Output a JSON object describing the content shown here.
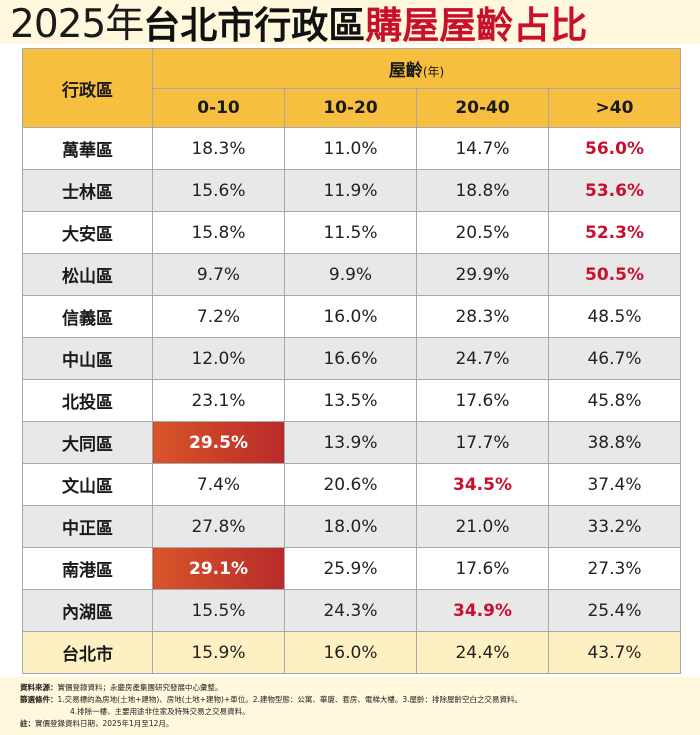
{
  "title": {
    "year": "2025年",
    "main": "台北市行政區",
    "highlight": "購屋屋齡占比"
  },
  "table": {
    "district_header": "行政區",
    "age_header": "屋齡",
    "age_unit": "(年)",
    "age_buckets": [
      "0-10",
      "10-20",
      "20-40",
      ">40"
    ],
    "rows": [
      {
        "district": "萬華區",
        "values": [
          "18.3%",
          "11.0%",
          "14.7%",
          "56.0%"
        ],
        "highlight": [
          3
        ]
      },
      {
        "district": "士林區",
        "values": [
          "15.6%",
          "11.9%",
          "18.8%",
          "53.6%"
        ],
        "highlight": [
          3
        ]
      },
      {
        "district": "大安區",
        "values": [
          "15.8%",
          "11.5%",
          "20.5%",
          "52.3%"
        ],
        "highlight": [
          3
        ]
      },
      {
        "district": "松山區",
        "values": [
          "9.7%",
          "9.9%",
          "29.9%",
          "50.5%"
        ],
        "highlight": [
          3
        ]
      },
      {
        "district": "信義區",
        "values": [
          "7.2%",
          "16.0%",
          "28.3%",
          "48.5%"
        ],
        "highlight": []
      },
      {
        "district": "中山區",
        "values": [
          "12.0%",
          "16.6%",
          "24.7%",
          "46.7%"
        ],
        "highlight": []
      },
      {
        "district": "北投區",
        "values": [
          "23.1%",
          "13.5%",
          "17.6%",
          "45.8%"
        ],
        "highlight": []
      },
      {
        "district": "大同區",
        "values": [
          "29.5%",
          "13.9%",
          "17.7%",
          "38.8%"
        ],
        "highlight": [
          0
        ]
      },
      {
        "district": "文山區",
        "values": [
          "7.4%",
          "20.6%",
          "34.5%",
          "37.4%"
        ],
        "highlight": [
          2
        ]
      },
      {
        "district": "中正區",
        "values": [
          "27.8%",
          "18.0%",
          "21.0%",
          "33.2%"
        ],
        "highlight": []
      },
      {
        "district": "南港區",
        "values": [
          "29.1%",
          "25.9%",
          "17.6%",
          "27.3%"
        ],
        "highlight": [
          0
        ]
      },
      {
        "district": "內湖區",
        "values": [
          "15.5%",
          "24.3%",
          "34.9%",
          "25.4%"
        ],
        "highlight": [
          2
        ]
      }
    ],
    "total": {
      "district": "台北市",
      "values": [
        "15.9%",
        "16.0%",
        "24.4%",
        "43.7%"
      ]
    }
  },
  "notes": {
    "source_label": "資料來源：",
    "source_text": "實價登錄資料；永慶房產集團研究發展中心彙整。",
    "filter_label": "篩選條件：",
    "filter_text": "1.交易標的為房地(土地+建物)、房地(土地+建物)+車位。2.建物型態：公寓、華廈、套房、電梯大樓。3.屋齡：排除屋齡空白之交易資料。",
    "filter_text_2": "4.排除一樓、主要用途非住家及特殊交易之交易資料。",
    "note_label": "註：",
    "note_text": "實價登錄資料日期，2025年1月至12月。"
  },
  "colors": {
    "header": "#f6bf3f",
    "accent_red": "#c8102e",
    "gradient_start": "#d9552a",
    "gradient_end": "#b92a2a",
    "total_row": "#fdf0c2",
    "stripe": "#e8e8e8"
  }
}
